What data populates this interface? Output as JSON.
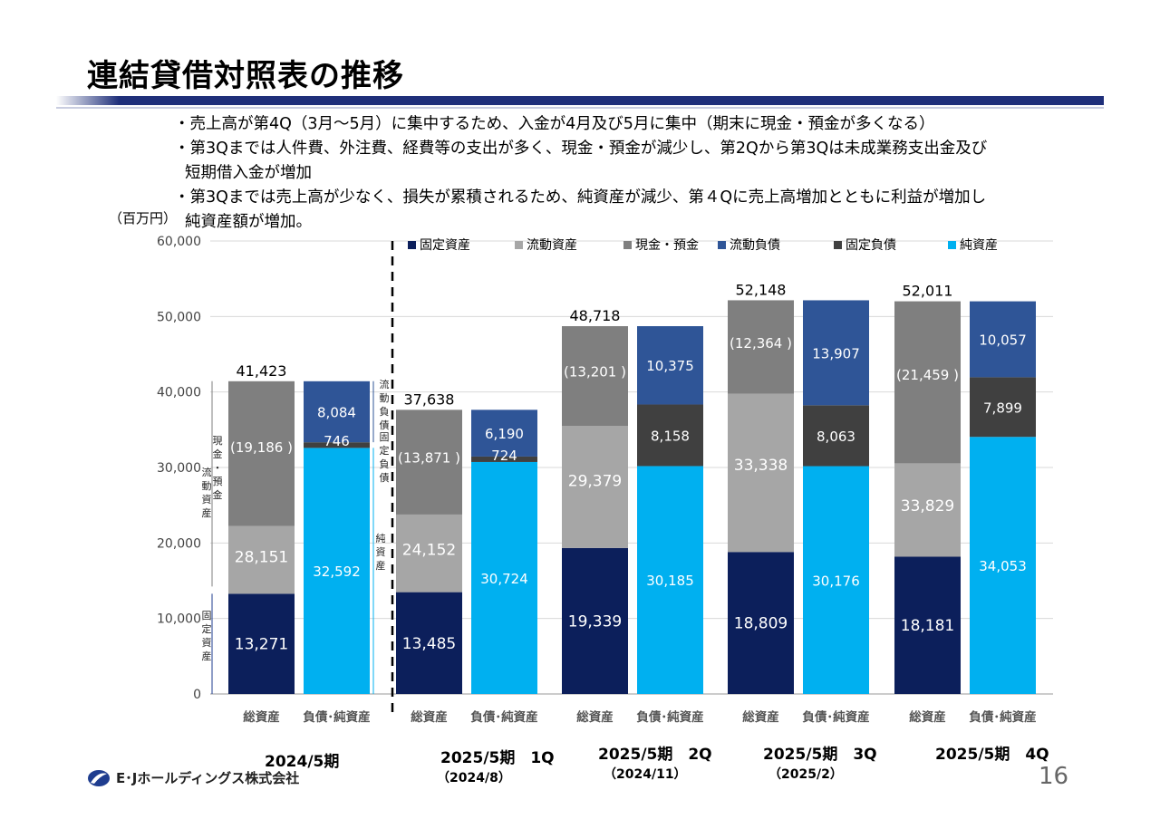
{
  "header": {
    "title": "連結貸借対照表の推移",
    "bullets": [
      "・売上高が第4Q（3月～5月）に集中するため、入金が4月及び5月に集中（期末に現金・預金が多くなる）",
      "・第3Qまでは人件費、外注費、経費等の支出が多く、現金・預金が減少し、第2Qから第3Qは未成業務支出金及び",
      "短期借入金が増加",
      "・第3Qまでは売上高が少なく、損失が累積されるため、純資産が減少、第４Qに売上高増加とともに利益が増加し",
      "純資産額が増加。"
    ]
  },
  "footer": {
    "company": "E･Jホールディングス株式会社",
    "page": "16"
  },
  "colors": {
    "fixed_assets": "#0c1f5b",
    "current_assets": "#a6a6a6",
    "cash": "#7f7f7f",
    "current_liab": "#2f5597",
    "fixed_liab": "#404040",
    "net_assets": "#00b0f0"
  },
  "chart_data": {
    "type": "bar",
    "stacked": true,
    "ylabel": "（百万円）",
    "ylim": [
      0,
      60000
    ],
    "yticks": [
      "0",
      "10,000",
      "20,000",
      "30,000",
      "40,000",
      "50,000",
      "60,000"
    ],
    "grid": true,
    "legend": [
      "固定資産",
      "流動資産",
      "現金・預金",
      "流動負債",
      "固定負債",
      "純資産"
    ],
    "bar_labels": [
      "総資産",
      "負債･純資産"
    ],
    "periods": [
      {
        "label": "2024/5期",
        "sub": "",
        "assets": {
          "fixed": 13271,
          "current": 8966,
          "cash": 19186,
          "total": 41423,
          "current_label": "28,151",
          "cash_label": "(19,186 )",
          "fixed_label": "13,271",
          "total_label": "41,423"
        },
        "liab": {
          "net": 32592,
          "fixed": 746,
          "current": 8084,
          "net_label": "32,592",
          "fixed_label": "746",
          "current_label": "8,084"
        }
      },
      {
        "label": "2025/5期　1Q",
        "sub": "（2024/8）",
        "assets": {
          "fixed": 13485,
          "current": 10282,
          "cash": 13871,
          "total": 37638,
          "current_label": "24,152",
          "cash_label": "(13,871 )",
          "fixed_label": "13,485",
          "total_label": "37,638"
        },
        "liab": {
          "net": 30724,
          "fixed": 724,
          "current": 6190,
          "net_label": "30,724",
          "fixed_label": "724",
          "current_label": "6,190"
        }
      },
      {
        "label": "2025/5期　2Q",
        "sub": "（2024/11）",
        "assets": {
          "fixed": 19339,
          "current": 16178,
          "cash": 13201,
          "total": 48718,
          "current_label": "29,379",
          "cash_label": "(13,201 )",
          "fixed_label": "19,339",
          "total_label": "48,718"
        },
        "liab": {
          "net": 30185,
          "fixed": 8158,
          "current": 10375,
          "net_label": "30,185",
          "fixed_label": "8,158",
          "current_label": "10,375"
        }
      },
      {
        "label": "2025/5期　3Q",
        "sub": "（2025/2）",
        "assets": {
          "fixed": 18809,
          "current": 20974,
          "cash": 12364,
          "total": 52148,
          "current_label": "33,338",
          "cash_label": "(12,364 )",
          "fixed_label": "18,809",
          "total_label": "52,148"
        },
        "liab": {
          "net": 30176,
          "fixed": 8063,
          "current": 13907,
          "net_label": "30,176",
          "fixed_label": "8,063",
          "current_label": "13,907"
        }
      },
      {
        "label": "2025/5期　4Q",
        "sub": "",
        "assets": {
          "fixed": 18181,
          "current": 12370,
          "cash": 21459,
          "total": 52011,
          "current_label": "33,829",
          "cash_label": "(21,459 )",
          "fixed_label": "18,181",
          "total_label": "52,011"
        },
        "liab": {
          "net": 34053,
          "fixed": 7899,
          "current": 10057,
          "net_label": "34,053",
          "fixed_label": "7,899",
          "current_label": "10,057"
        }
      }
    ],
    "annotations": {
      "assets_side": [
        "現金・預金",
        "流動資産",
        "固定資産"
      ],
      "liab_side": [
        "流動負債",
        "固定負債",
        "純資産"
      ]
    }
  }
}
